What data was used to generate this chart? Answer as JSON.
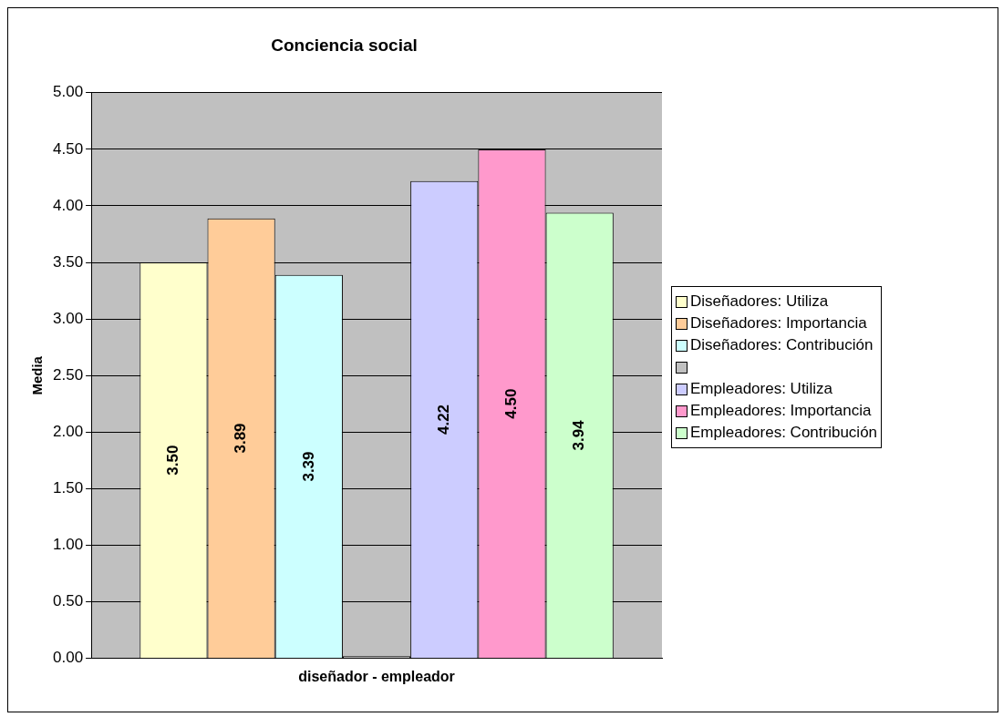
{
  "chart_data": {
    "type": "bar",
    "title": "Conciencia social",
    "ylabel": "Media",
    "categories": [
      "diseñador - empleador"
    ],
    "series": [
      {
        "name": "Diseñadores: Utiliza",
        "color": "#ffffcc",
        "values": [
          3.5
        ],
        "value_labels": [
          "3.50"
        ]
      },
      {
        "name": "Diseñadores: Importancia",
        "color": "#ffcc99",
        "values": [
          3.89
        ],
        "value_labels": [
          "3.89"
        ]
      },
      {
        "name": "Diseñadores: Contribución",
        "color": "#ccffff",
        "values": [
          3.39
        ],
        "value_labels": [
          "3.39"
        ]
      },
      {
        "color": "#c0c0c0",
        "values": [
          0.02
        ],
        "value_labels": [
          null
        ]
      },
      {
        "name": "Empleadores: Utiliza",
        "color": "#ccccff",
        "values": [
          4.22
        ],
        "value_labels": [
          "4.22"
        ]
      },
      {
        "name": "Empleadores: Importancia",
        "color": "#ff99cc",
        "values": [
          4.5
        ],
        "value_labels": [
          "4.50"
        ]
      },
      {
        "name": "Empleadores: Contribución",
        "color": "#ccffcc",
        "values": [
          3.94
        ],
        "value_labels": [
          "3.94"
        ]
      }
    ],
    "ylim": [
      0,
      5
    ],
    "yticks": [
      {
        "value": 0,
        "label": "0.00"
      },
      {
        "value": 0.5,
        "label": "0.50"
      },
      {
        "value": 1,
        "label": "1.00"
      },
      {
        "value": 1.5,
        "label": "1.50"
      },
      {
        "value": 2,
        "label": "2.00"
      },
      {
        "value": 2.5,
        "label": "2.50"
      },
      {
        "value": 3,
        "label": "3.00"
      },
      {
        "value": 3.5,
        "label": "3.50"
      },
      {
        "value": 4,
        "label": "4.00"
      },
      {
        "value": 4.5,
        "label": "4.50"
      },
      {
        "value": 5,
        "label": "5.00"
      }
    ],
    "grid": "y",
    "legend": "right"
  }
}
